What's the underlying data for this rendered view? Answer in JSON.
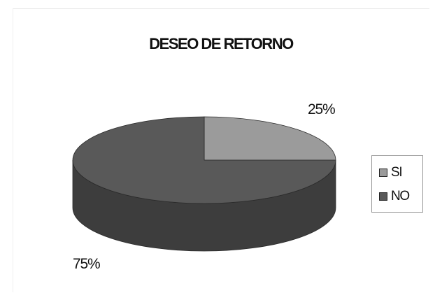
{
  "chart_data": {
    "type": "pie",
    "title": "DESEO DE RETORNO",
    "categories": [
      "SI",
      "NO"
    ],
    "values": [
      25,
      75
    ],
    "unit": "%",
    "data_labels": [
      "25%",
      "75%"
    ],
    "legend_position": "right",
    "colors": {
      "SI": "#9b9b9b",
      "NO": "#595959"
    }
  }
}
